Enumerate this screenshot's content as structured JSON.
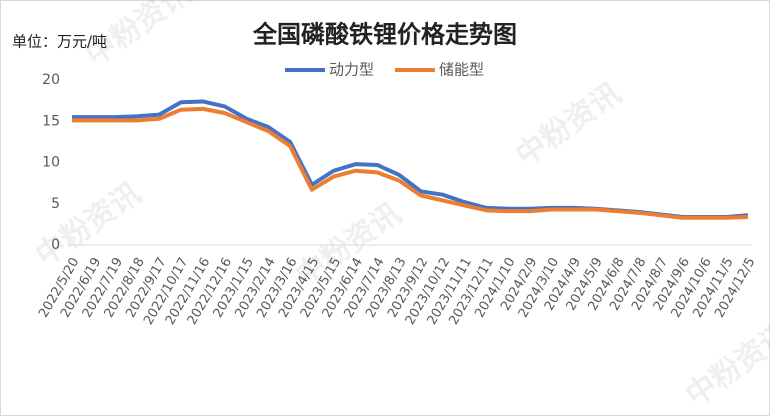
{
  "chart_data": {
    "type": "line",
    "title": "全国磷酸铁锂价格走势图",
    "y_label": "单位：万元/吨",
    "watermark": "中粉资讯",
    "x": [
      "2022/5/20",
      "2022/6/19",
      "2022/7/19",
      "2022/8/18",
      "2022/9/17",
      "2022/10/17",
      "2022/11/16",
      "2022/12/16",
      "2023/1/15",
      "2023/2/14",
      "2023/3/16",
      "2023/4/15",
      "2023/5/15",
      "2023/6/14",
      "2023/7/14",
      "2023/8/13",
      "2023/9/12",
      "2023/10/12",
      "2023/11/11",
      "2023/12/11",
      "2024/1/10",
      "2024/2/9",
      "2024/3/10",
      "2024/4/9",
      "2024/5/9",
      "2024/6/8",
      "2024/7/8",
      "2024/8/7",
      "2024/9/6",
      "2024/10/6",
      "2024/11/5",
      "2024/12/5"
    ],
    "series": [
      {
        "name": "动力型",
        "color": "#4472c4",
        "values": [
          15.5,
          15.5,
          15.5,
          15.6,
          15.8,
          17.3,
          17.4,
          16.8,
          15.3,
          14.3,
          12.5,
          7.3,
          9.0,
          9.8,
          9.7,
          8.5,
          6.5,
          6.1,
          5.2,
          4.5,
          4.4,
          4.4,
          4.5,
          4.5,
          4.4,
          4.2,
          4.0,
          3.7,
          3.4,
          3.4,
          3.4,
          3.6
        ]
      },
      {
        "name": "储能型",
        "color": "#ed7d31",
        "values": [
          15.1,
          15.1,
          15.1,
          15.1,
          15.3,
          16.4,
          16.5,
          16.0,
          14.9,
          13.8,
          12.0,
          6.7,
          8.3,
          9.0,
          8.8,
          7.8,
          6.0,
          5.4,
          4.8,
          4.2,
          4.1,
          4.1,
          4.3,
          4.3,
          4.3,
          4.1,
          3.9,
          3.6,
          3.3,
          3.3,
          3.3,
          3.4
        ]
      }
    ],
    "ylim": [
      0,
      20
    ],
    "yticks": [
      0,
      5,
      10,
      15,
      20
    ],
    "grid": false,
    "legend": "top"
  }
}
